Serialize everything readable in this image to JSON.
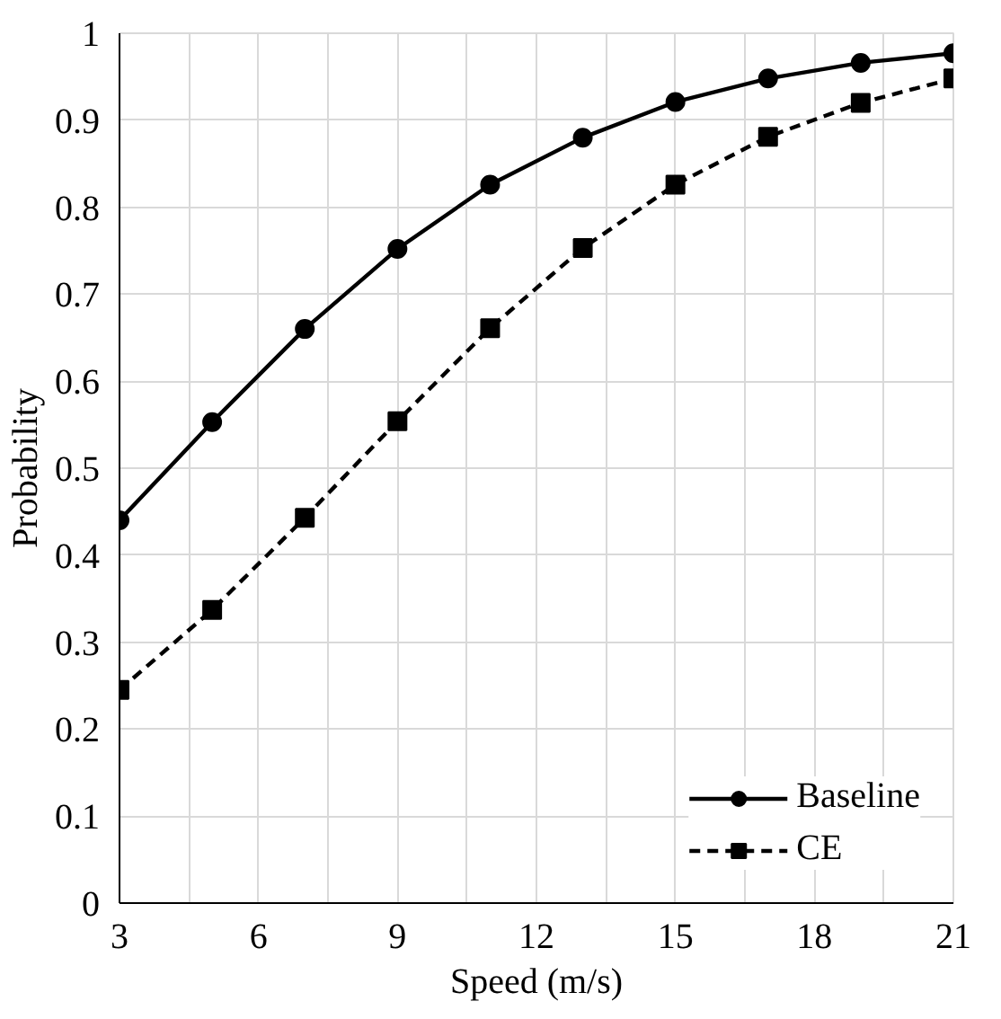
{
  "chart_data": {
    "type": "line",
    "xlabel": "Speed (m/s)",
    "ylabel": "Probability",
    "x": [
      3,
      5,
      7,
      9,
      11,
      13,
      15,
      17,
      19,
      21
    ],
    "series": [
      {
        "name": "Baseline",
        "color": "#000000",
        "marker": "circle",
        "line_style": "solid",
        "values": [
          0.44,
          0.553,
          0.66,
          0.752,
          0.826,
          0.88,
          0.921,
          0.948,
          0.966,
          0.977
        ]
      },
      {
        "name": "CE",
        "color": "#000000",
        "marker": "square",
        "line_style": "dashed",
        "values": [
          0.245,
          0.337,
          0.443,
          0.554,
          0.661,
          0.753,
          0.826,
          0.881,
          0.92,
          0.948
        ]
      }
    ],
    "xlim": [
      3,
      21
    ],
    "ylim": [
      0,
      1
    ],
    "xticks": [
      3,
      {
        "value": 4.5,
        "label": null
      },
      6,
      {
        "value": 7.5,
        "label": null
      },
      9,
      {
        "value": 10.5,
        "label": null
      },
      12,
      {
        "value": 13.5,
        "label": null
      },
      15,
      {
        "value": 16.5,
        "label": null
      },
      18,
      {
        "value": 19.5,
        "label": null
      },
      21
    ],
    "yticks": [
      0,
      0.1,
      0.2,
      0.3,
      0.4,
      0.5,
      0.6,
      0.7,
      0.8,
      0.9,
      1
    ],
    "grid": true,
    "legend": "bottom right"
  }
}
